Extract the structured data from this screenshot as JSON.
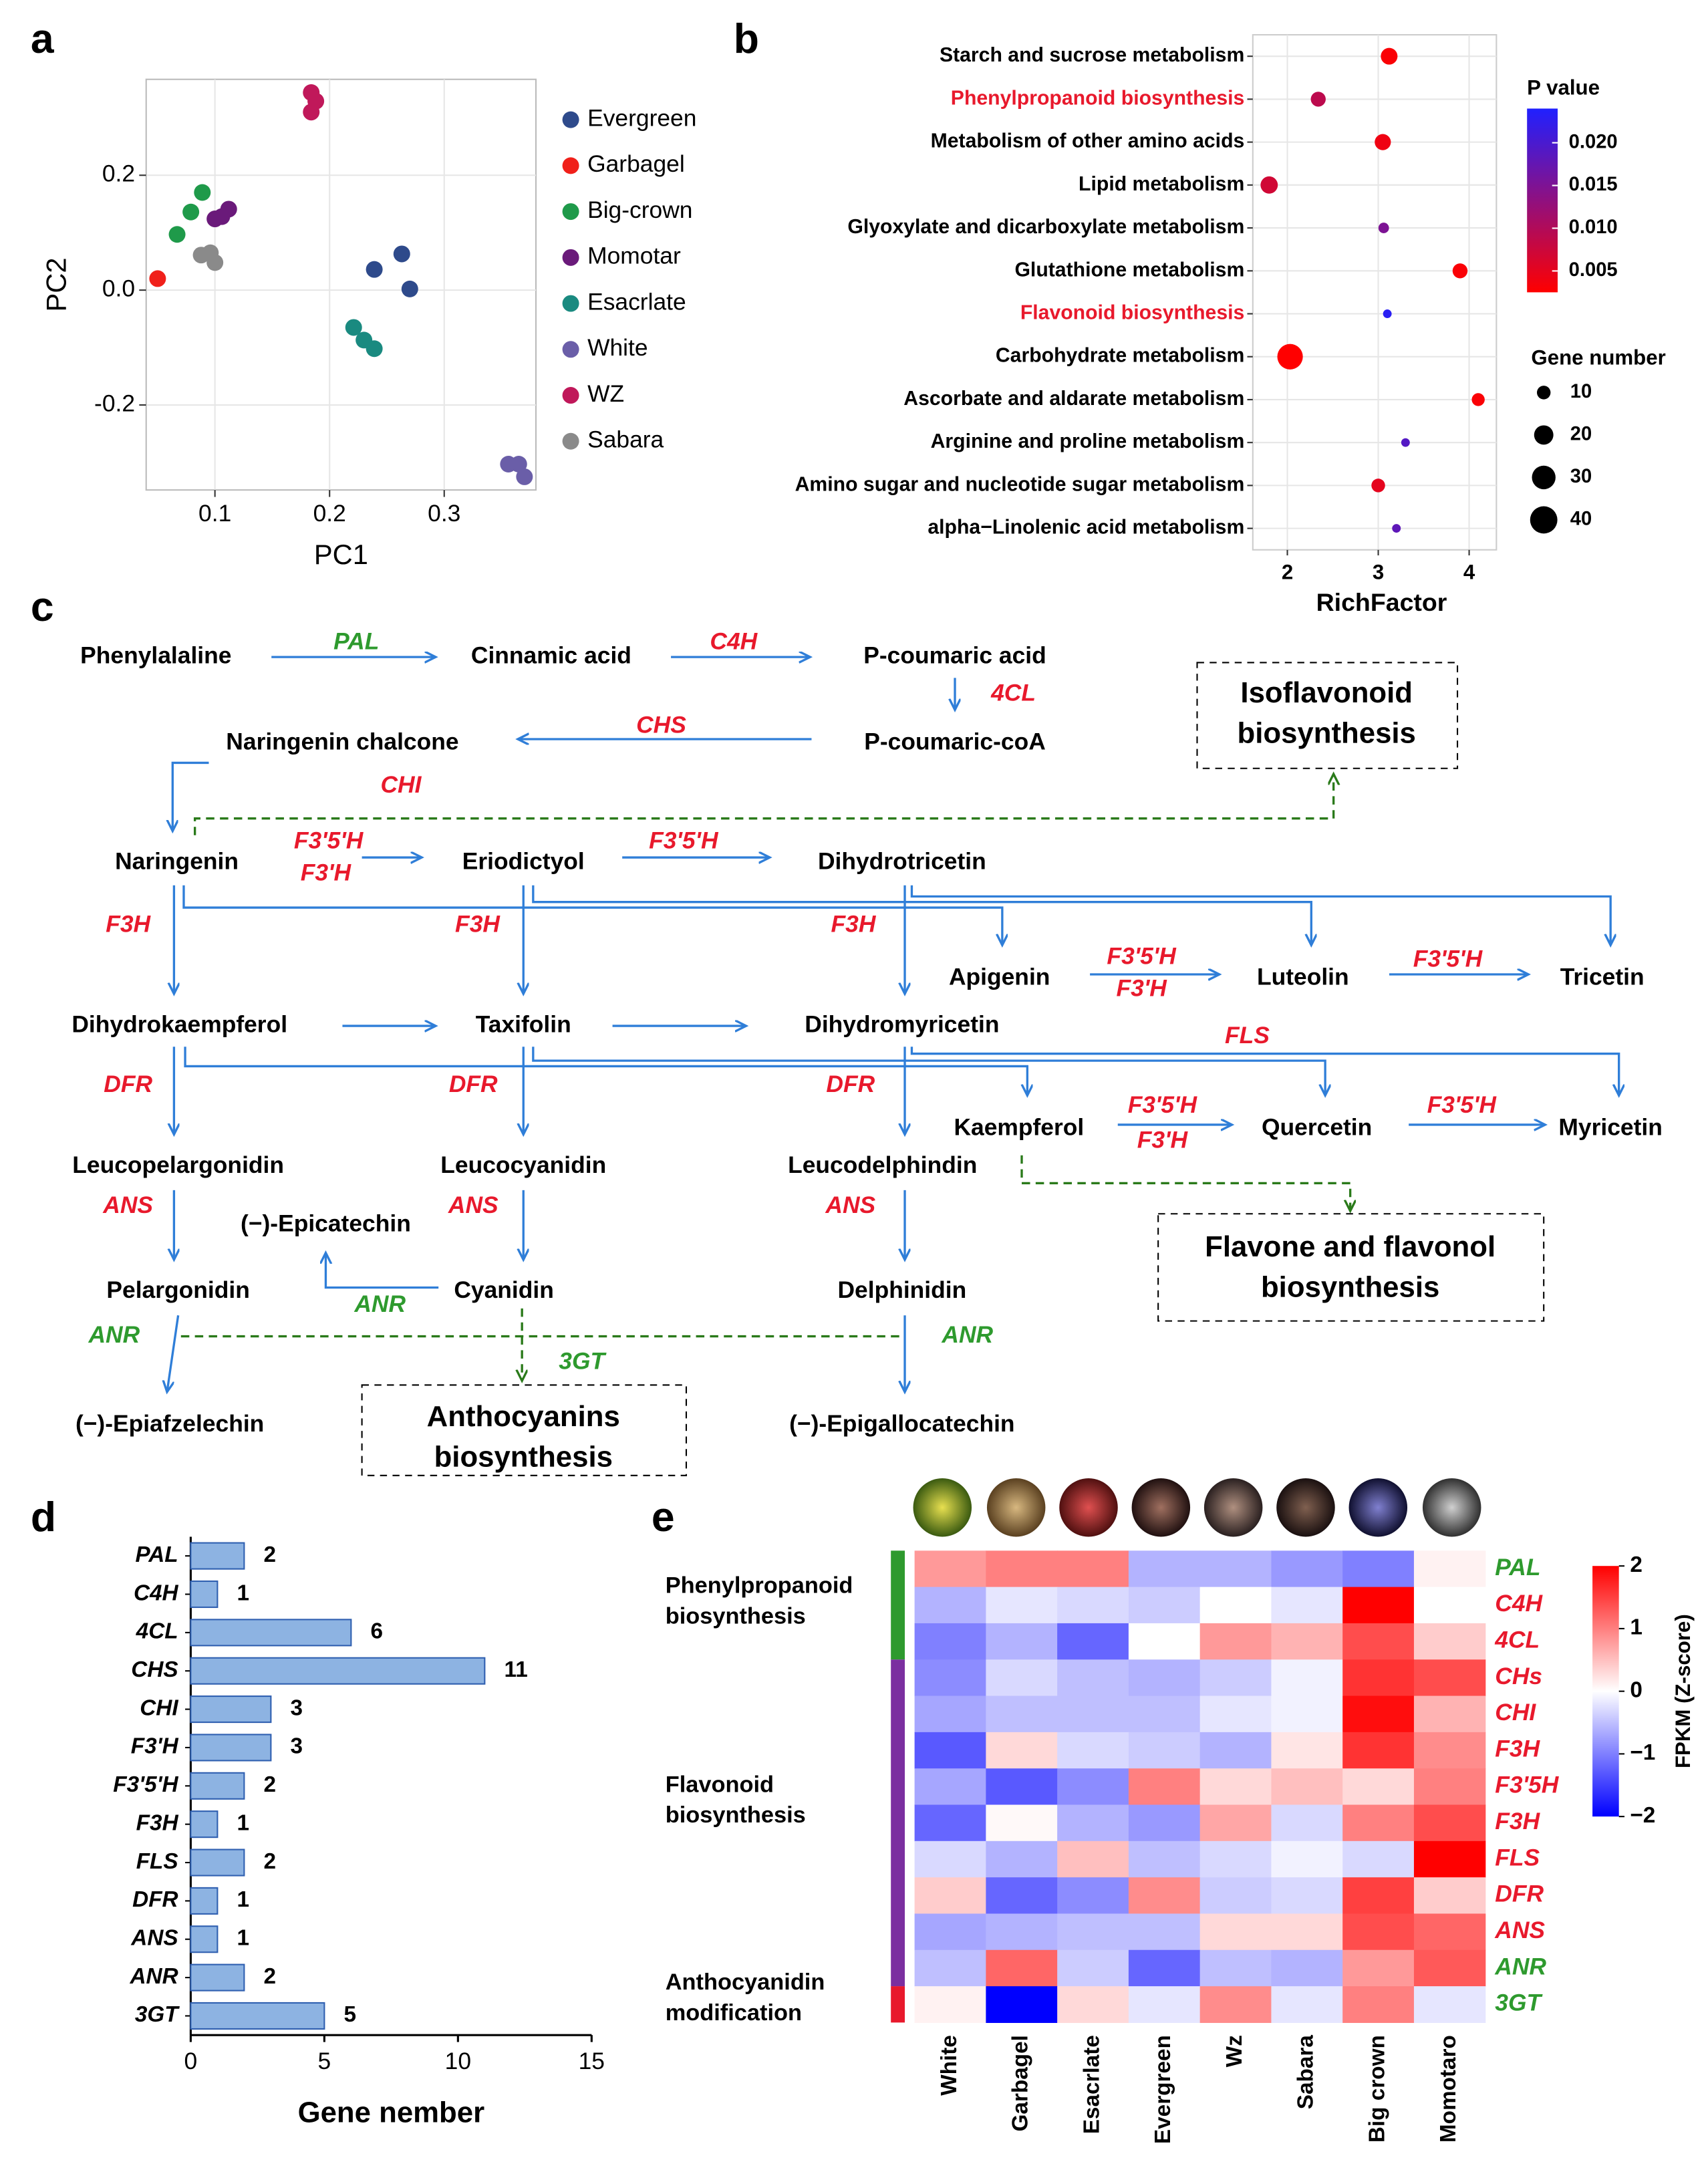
{
  "chart_data": [
    {
      "type": "scatter",
      "label": "a",
      "x_label": "PC1",
      "y_label": "PC2",
      "xlim": [
        0.04,
        0.38
      ],
      "ylim": [
        -0.348,
        0.367
      ],
      "xticks": [
        0.1,
        0.2,
        0.3
      ],
      "yticks": [
        -0.2,
        {
          "value": 0,
          "label": "0.0"
        },
        0.2
      ],
      "grid": true,
      "legend": "right",
      "series": [
        {
          "name": "Evergreen",
          "color": "#2e4a8b",
          "x": [
            0.239,
            0.263,
            0.27
          ],
          "values": [
            0.036,
            0.063,
            0.002
          ]
        },
        {
          "name": "Garbagel",
          "color": "#f0201a",
          "x": [
            0.05
          ],
          "values": [
            0.02
          ]
        },
        {
          "name": "Big-crown",
          "color": "#1f9a4a",
          "x": [
            0.067,
            0.079,
            0.089
          ],
          "values": [
            0.097,
            0.136,
            0.17
          ]
        },
        {
          "name": "Momotar",
          "color": "#6a1a7a",
          "x": [
            0.1,
            0.106,
            0.112
          ],
          "values": [
            0.124,
            0.128,
            0.141
          ]
        },
        {
          "name": "Esacrlate",
          "color": "#1a8a80",
          "x": [
            0.221,
            0.23,
            0.239
          ],
          "values": [
            -0.065,
            -0.087,
            -0.102
          ]
        },
        {
          "name": "White",
          "color": "#6a5ea8",
          "x": [
            0.356,
            0.365,
            0.37
          ],
          "values": [
            -0.303,
            -0.303,
            -0.325
          ]
        },
        {
          "name": "WZ",
          "color": "#c0185a",
          "x": [
            0.184,
            0.188,
            0.184
          ],
          "values": [
            0.344,
            0.329,
            0.31
          ]
        },
        {
          "name": "Sabara",
          "color": "#8a8a8a",
          "x": [
            0.088,
            0.096,
            0.1
          ],
          "values": [
            0.061,
            0.065,
            0.048
          ]
        }
      ]
    },
    {
      "type": "bubble",
      "label": "b",
      "x_label": "RichFactor",
      "categories": [
        "Starch and sucrose metabolism",
        "Phenylpropanoid biosynthesis",
        "Metabolism of other amino acids",
        "Lipid metabolism",
        "Glyoxylate and dicarboxylate metabolism",
        "Glutathione metabolism",
        "Flavonoid biosynthesis",
        "Carbohydrate metabolism",
        "Ascorbate and aldarate metabolism",
        "Arginine and proline metabolism",
        "Amino sugar and nucleotide sugar metabolism",
        "alpha−Linolenic acid metabolism"
      ],
      "category_colors": [
        "#000000",
        "#e8192c",
        "#000000",
        "#000000",
        "#000000",
        "#000000",
        "#e8192c",
        "#000000",
        "#000000",
        "#000000",
        "#000000",
        "#000000"
      ],
      "values": [
        3.12,
        2.34,
        3.05,
        1.8,
        3.06,
        3.9,
        3.1,
        2.03,
        4.1,
        3.3,
        3.0,
        3.2
      ],
      "sizes": [
        15,
        12,
        14,
        16,
        6,
        12,
        4,
        35,
        9,
        4,
        10,
        4
      ],
      "p_values": [
        0.003,
        0.009,
        0.004,
        0.007,
        0.015,
        0.003,
        0.023,
        0.002,
        0.003,
        0.019,
        0.005,
        0.018
      ],
      "xlim": [
        1.62,
        4.3
      ],
      "xticks": [
        2,
        3,
        4
      ],
      "grid": true,
      "color_title": "P value",
      "color_lim": [
        0.0025,
        0.024
      ],
      "color_ticks": [
        0.005,
        {
          "value": 0.01,
          "label": "0.010"
        },
        0.015,
        {
          "value": 0.02,
          "label": "0.020"
        }
      ],
      "colors": [
        "#ff0000",
        "#2020ff"
      ],
      "size_title": "Gene number",
      "size_legend": [
        10,
        20,
        30,
        40
      ]
    },
    {
      "type": "hbar",
      "label": "d",
      "x_label": "Gene nember",
      "categories": [
        "PAL",
        "C4H",
        "4CL",
        "CHS",
        "CHI",
        "F3'H",
        "F3'5'H",
        "F3H",
        "FLS",
        "DFR",
        "ANS",
        "ANR",
        "3GT"
      ],
      "values": [
        2,
        1,
        6,
        11,
        3,
        3,
        2,
        1,
        2,
        1,
        1,
        2,
        5
      ],
      "xlim": [
        0,
        15
      ],
      "xticks": [
        0,
        5,
        10,
        15
      ],
      "color": "#8db3e2",
      "edge_color": "#2f5fb0"
    },
    {
      "type": "heatmap",
      "label": "e",
      "columns": [
        "White",
        "Garbagel",
        "Esacrlate",
        "Evergreen",
        "Wz",
        "Sabara",
        "Big crown",
        "Momotaro"
      ],
      "rows": [
        "PAL",
        "C4H",
        "4CL",
        "CHs",
        "CHI",
        "F3H",
        "F3'5H",
        "F3H",
        "FLS",
        "DFR",
        "ANS",
        "ANR",
        "3GT"
      ],
      "row_colors": [
        "#2e9a2e",
        "#e8192c",
        "#e8192c",
        "#e8192c",
        "#e8192c",
        "#e8192c",
        "#e8192c",
        "#e8192c",
        "#e8192c",
        "#e8192c",
        "#e8192c",
        "#2e9a2e",
        "#2e9a2e"
      ],
      "values": [
        [
          0.8,
          1.0,
          1.0,
          -0.6,
          -0.6,
          -0.8,
          -1.0,
          0.1
        ],
        [
          -0.6,
          -0.2,
          -0.3,
          -0.4,
          0,
          -0.2,
          2.0,
          0
        ],
        [
          -1.0,
          -0.6,
          -1.2,
          0,
          0.8,
          0.6,
          1.4,
          0.4
        ],
        [
          -0.9,
          -0.3,
          -0.5,
          -0.6,
          -0.4,
          -0.1,
          1.6,
          1.4
        ],
        [
          -0.7,
          -0.5,
          -0.5,
          -0.5,
          -0.2,
          -0.1,
          1.9,
          0.6
        ],
        [
          -1.3,
          0.3,
          -0.3,
          -0.4,
          -0.6,
          0.2,
          1.6,
          0.9
        ],
        [
          -0.7,
          -1.3,
          -0.9,
          1.0,
          0.3,
          0.5,
          0.3,
          1.0
        ],
        [
          -1.2,
          0.05,
          -0.6,
          -0.8,
          0.7,
          -0.3,
          1.0,
          1.4
        ],
        [
          -0.3,
          -0.6,
          0.5,
          -0.5,
          -0.3,
          -0.1,
          -0.3,
          2.0
        ],
        [
          0.4,
          -1.2,
          -0.9,
          0.9,
          -0.4,
          -0.3,
          1.5,
          0.4
        ],
        [
          -0.7,
          -0.6,
          -0.5,
          -0.5,
          0.3,
          0.3,
          1.4,
          1.2
        ],
        [
          -0.5,
          1.2,
          -0.4,
          -1.2,
          -0.5,
          -0.6,
          0.8,
          1.3
        ],
        [
          0.1,
          -2.0,
          0.3,
          -0.2,
          0.9,
          -0.2,
          1.0,
          -0.2
        ]
      ],
      "color_lim": [
        -2,
        2
      ],
      "colors": [
        "#0000ff",
        "#ffffff",
        "#ff0000"
      ],
      "color_ticks": [
        {
          "value": -2,
          "label": "−2"
        },
        {
          "value": -1,
          "label": "−1"
        },
        0,
        1,
        2
      ],
      "color_title": "FPKM (Z-score)",
      "groups": [
        {
          "lines": [
            "Phenylpropanoid",
            "biosynthesis"
          ],
          "color": "#2e9a2e"
        },
        {
          "lines": [
            "Flavonoid",
            "biosynthesis"
          ],
          "color": "#7b2fa0"
        },
        {
          "lines": [
            "Anthocyanidin",
            "modification"
          ],
          "color": "#e8192c"
        }
      ]
    }
  ],
  "pathway": {
    "label": "c",
    "compounds": [
      "Phenylalaline",
      "Cinnamic acid",
      "P-coumaric acid",
      "P-coumaric-coA",
      "Naringenin chalcone",
      "Naringenin",
      "Eriodictyol",
      "Dihydrotricetin",
      "Apigenin",
      "Luteolin",
      "Tricetin",
      "Dihydrokaempferol",
      "Taxifolin",
      "Dihydromyricetin",
      "Kaempferol",
      "Quercetin",
      "Myricetin",
      "Leucopelargonidin",
      "Leucocyanidin",
      "Leucodelphindin",
      "(−)-Epicatechin",
      "Pelargonidin",
      "Cyanidin",
      "Delphinidin",
      "(−)-Epiafzelechin",
      "(−)-Epigallocatechin"
    ],
    "enzymes": [
      {
        "text": "PAL",
        "color": "#2e9a2e"
      },
      {
        "text": "C4H",
        "color": "#e8192c"
      },
      {
        "text": "4CL",
        "color": "#e8192c"
      },
      {
        "text": "CHS",
        "color": "#e8192c"
      },
      {
        "text": "CHI",
        "color": "#e8192c"
      },
      {
        "text": "F3'5'H",
        "color": "#e8192c"
      },
      {
        "text": "F3'H",
        "color": "#e8192c"
      },
      {
        "text": "F3'5'H",
        "color": "#e8192c"
      },
      {
        "text": "F3H",
        "color": "#e8192c"
      },
      {
        "text": "F3H",
        "color": "#e8192c"
      },
      {
        "text": "F3H",
        "color": "#e8192c"
      },
      {
        "text": "F3'5'H",
        "color": "#e8192c"
      },
      {
        "text": "F3'H",
        "color": "#e8192c"
      },
      {
        "text": "F3'5'H",
        "color": "#e8192c"
      },
      {
        "text": "FLS",
        "color": "#e8192c"
      },
      {
        "text": "DFR",
        "color": "#e8192c"
      },
      {
        "text": "DFR",
        "color": "#e8192c"
      },
      {
        "text": "DFR",
        "color": "#e8192c"
      },
      {
        "text": "F3'5'H",
        "color": "#e8192c"
      },
      {
        "text": "F3'H",
        "color": "#e8192c"
      },
      {
        "text": "F3'5'H",
        "color": "#e8192c"
      },
      {
        "text": "ANS",
        "color": "#e8192c"
      },
      {
        "text": "ANS",
        "color": "#e8192c"
      },
      {
        "text": "ANS",
        "color": "#e8192c"
      },
      {
        "text": "ANR",
        "color": "#2e9a2e"
      },
      {
        "text": "ANR",
        "color": "#2e9a2e"
      },
      {
        "text": "3GT",
        "color": "#2e9a2e"
      },
      {
        "text": "ANR",
        "color": "#2e9a2e"
      }
    ],
    "boxes": [
      {
        "lines": [
          "Isoflavonoid",
          "biosynthesis"
        ]
      },
      {
        "lines": [
          "Flavone and flavonol",
          "biosynthesis"
        ]
      },
      {
        "lines": [
          "Anthocyanins",
          "biosynthesis"
        ]
      }
    ]
  }
}
